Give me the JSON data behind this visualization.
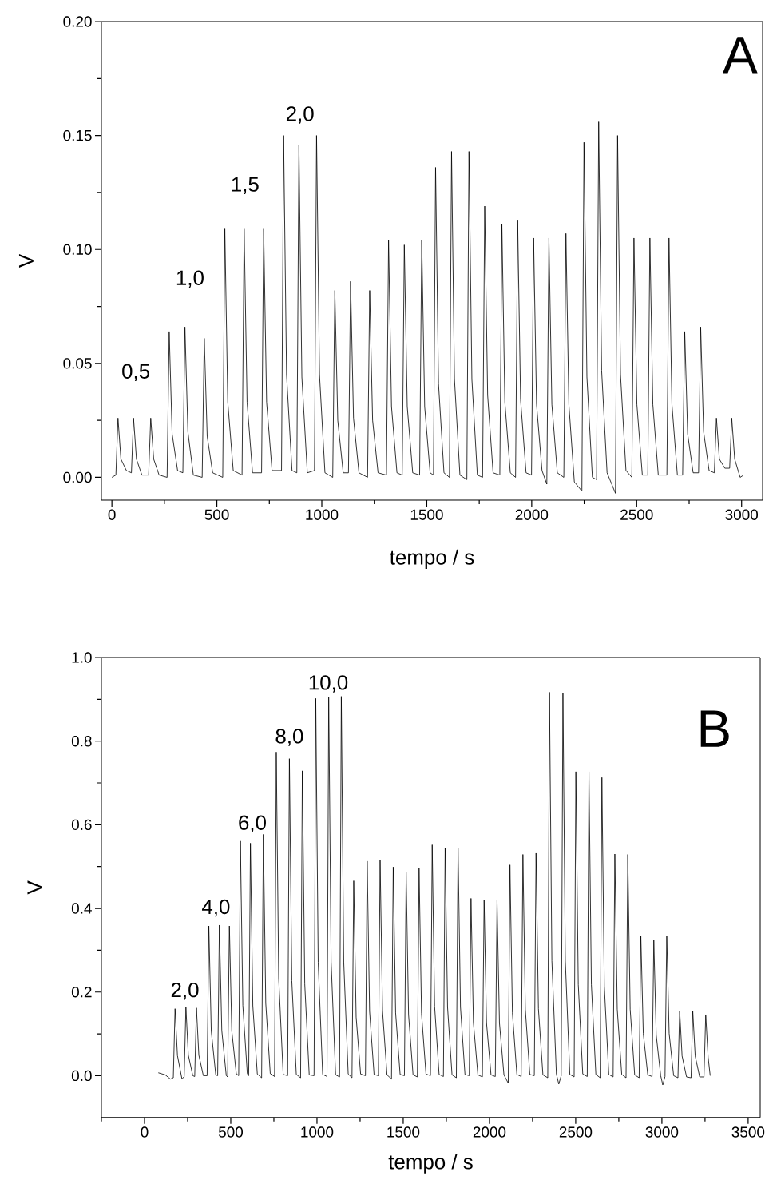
{
  "chart_data": [
    {
      "type": "line",
      "title": "A",
      "xlabel": "tempo / s",
      "ylabel": "V",
      "color": "#000000",
      "marker": "none",
      "line_style": "solid",
      "grid": false,
      "xlim": [
        -50,
        3100
      ],
      "ylim": [
        -0.01,
        0.2
      ],
      "xticks": [
        0,
        {
          "value": 250,
          "label": null
        },
        500,
        {
          "value": 750,
          "label": null
        },
        1000,
        {
          "value": 1250,
          "label": null
        },
        1500,
        {
          "value": 1750,
          "label": null
        },
        2000,
        {
          "value": 2250,
          "label": null
        },
        2500,
        {
          "value": 2750,
          "label": null
        },
        3000
      ],
      "yticks": [
        {
          "value": 0,
          "label": "0.00"
        },
        {
          "value": 0.025,
          "label": null
        },
        0.05,
        {
          "value": 0.075,
          "label": null
        },
        {
          "value": 0.1,
          "label": "0.10"
        },
        {
          "value": 0.125,
          "label": null
        },
        0.15,
        {
          "value": 0.175,
          "label": null
        },
        {
          "value": 0.2,
          "label": "0.20"
        }
      ],
      "annotations": [
        "0,5",
        "1,0",
        "1,5",
        "2,0"
      ],
      "x": [
        0,
        19,
        29,
        43,
        69,
        93,
        103,
        117,
        143,
        175,
        185,
        199,
        225,
        263,
        273,
        287,
        313,
        338,
        348,
        362,
        388,
        430,
        440,
        454,
        480,
        528,
        538,
        552,
        578,
        620,
        630,
        644,
        670,
        713,
        723,
        737,
        763,
        808,
        818,
        832,
        858,
        881,
        891,
        905,
        931,
        965,
        975,
        989,
        1015,
        1052,
        1062,
        1076,
        1102,
        1127,
        1137,
        1151,
        1177,
        1218,
        1228,
        1242,
        1268,
        1308,
        1318,
        1332,
        1358,
        1383,
        1393,
        1407,
        1433,
        1466,
        1476,
        1490,
        1516,
        1532,
        1542,
        1556,
        1582,
        1608,
        1618,
        1632,
        1658,
        1691,
        1701,
        1715,
        1741,
        1766,
        1776,
        1790,
        1816,
        1848,
        1858,
        1872,
        1898,
        1923,
        1933,
        1947,
        1973,
        1999,
        2009,
        2023,
        2049,
        2072,
        2082,
        2096,
        2122,
        2153,
        2163,
        2177,
        2203,
        2239,
        2249,
        2263,
        2289,
        2309,
        2319,
        2333,
        2359,
        2399,
        2409,
        2423,
        2449,
        2477,
        2487,
        2501,
        2527,
        2553,
        2563,
        2577,
        2603,
        2644,
        2654,
        2668,
        2694,
        2719,
        2729,
        2743,
        2769,
        2795,
        2805,
        2819,
        2845,
        2870,
        2880,
        2894,
        2920,
        2943,
        2953,
        2967,
        2993,
        3010
      ],
      "values": [
        0.0,
        0.001,
        0.026,
        0.008,
        0.003,
        0.002,
        0.026,
        0.008,
        0.001,
        0.001,
        0.026,
        0.008,
        0.001,
        0.0,
        0.064,
        0.019,
        0.003,
        0.002,
        0.066,
        0.02,
        0.001,
        0.0,
        0.061,
        0.018,
        0.002,
        0.0,
        0.109,
        0.033,
        0.003,
        0.001,
        0.109,
        0.033,
        0.002,
        0.002,
        0.109,
        0.033,
        0.003,
        0.003,
        0.15,
        0.045,
        0.003,
        0.002,
        0.146,
        0.044,
        0.002,
        0.003,
        0.15,
        0.045,
        0.002,
        0.0,
        0.082,
        0.025,
        0.002,
        0.002,
        0.086,
        0.026,
        0.002,
        0.0,
        0.082,
        0.025,
        0.002,
        0.001,
        0.104,
        0.031,
        0.002,
        0.001,
        0.102,
        0.031,
        0.002,
        0.001,
        0.104,
        0.031,
        0.002,
        0.001,
        0.136,
        0.041,
        0.002,
        0.0,
        0.143,
        0.043,
        0.001,
        -0.001,
        0.143,
        0.043,
        0.001,
        0.0,
        0.119,
        0.036,
        0.002,
        0.001,
        0.111,
        0.033,
        0.002,
        0.0,
        0.113,
        0.034,
        0.002,
        0.001,
        0.105,
        0.032,
        0.003,
        -0.003,
        0.105,
        0.032,
        0.002,
        0.0,
        0.107,
        0.032,
        -0.002,
        -0.006,
        0.147,
        0.044,
        0.0,
        -0.001,
        0.156,
        0.047,
        0.002,
        -0.007,
        0.15,
        0.045,
        0.003,
        0.0,
        0.105,
        0.032,
        0.001,
        0.001,
        0.105,
        0.032,
        0.001,
        0.001,
        0.105,
        0.032,
        0.001,
        0.001,
        0.064,
        0.019,
        0.002,
        0.002,
        0.066,
        0.02,
        0.003,
        0.002,
        0.026,
        0.008,
        0.004,
        0.004,
        0.026,
        0.008,
        0.0,
        0.001
      ]
    },
    {
      "type": "line",
      "title": "B",
      "xlabel": "tempo / s",
      "ylabel": "V",
      "color": "#000000",
      "marker": "none",
      "line_style": "solid",
      "grid": false,
      "xlim": [
        -250,
        3570
      ],
      "ylim": [
        -0.1,
        1.0
      ],
      "xticks": [
        {
          "value": -250,
          "label": null
        },
        0,
        {
          "value": 250,
          "label": null
        },
        500,
        {
          "value": 750,
          "label": null
        },
        1000,
        {
          "value": 1250,
          "label": null
        },
        1500,
        {
          "value": 1750,
          "label": null
        },
        2000,
        {
          "value": 2250,
          "label": null
        },
        2500,
        {
          "value": 2750,
          "label": null
        },
        3000,
        {
          "value": 3250,
          "label": null
        },
        3500
      ],
      "yticks": [
        {
          "value": 0,
          "label": "0.0"
        },
        {
          "value": 0.1,
          "label": null
        },
        0.2,
        {
          "value": 0.3,
          "label": null
        },
        0.4,
        {
          "value": 0.5,
          "label": null
        },
        0.6,
        {
          "value": 0.7,
          "label": null
        },
        0.8,
        {
          "value": 0.9,
          "label": null
        },
        {
          "value": 1.0,
          "label": "1.0"
        }
      ],
      "annotations": [
        "2,0",
        "4,0",
        "6,0",
        "8,0",
        "10,0"
      ],
      "x": [
        80,
        120,
        150,
        167,
        177,
        191,
        217,
        230,
        240,
        254,
        280,
        291,
        301,
        315,
        341,
        363,
        373,
        387,
        413,
        424,
        434,
        448,
        474,
        482,
        492,
        506,
        532,
        546,
        556,
        570,
        596,
        604,
        614,
        628,
        654,
        679,
        689,
        703,
        729,
        754,
        764,
        778,
        804,
        830,
        840,
        854,
        880,
        905,
        915,
        929,
        955,
        983,
        993,
        1007,
        1033,
        1058,
        1068,
        1082,
        1108,
        1131,
        1141,
        1155,
        1181,
        1203,
        1213,
        1227,
        1253,
        1281,
        1291,
        1305,
        1331,
        1356,
        1366,
        1380,
        1406,
        1432,
        1442,
        1456,
        1482,
        1507,
        1517,
        1531,
        1557,
        1582,
        1592,
        1606,
        1632,
        1658,
        1668,
        1682,
        1708,
        1733,
        1743,
        1757,
        1783,
        1808,
        1818,
        1832,
        1858,
        1883,
        1893,
        1907,
        1933,
        1959,
        1969,
        1983,
        2009,
        2034,
        2044,
        2058,
        2084,
        2109,
        2119,
        2133,
        2159,
        2184,
        2194,
        2208,
        2234,
        2260,
        2270,
        2284,
        2310,
        2338,
        2348,
        2362,
        2388,
        2402,
        2416,
        2426,
        2440,
        2466,
        2491,
        2501,
        2515,
        2541,
        2567,
        2577,
        2591,
        2617,
        2642,
        2652,
        2666,
        2692,
        2717,
        2727,
        2741,
        2767,
        2792,
        2802,
        2816,
        2842,
        2868,
        2878,
        2892,
        2918,
        2943,
        2953,
        2967,
        2993,
        3005,
        3018,
        3028,
        3042,
        3068,
        3093,
        3103,
        3117,
        3143,
        3169,
        3179,
        3193,
        3219,
        3244,
        3254,
        3268,
        3280
      ],
      "values": [
        0.007,
        0.002,
        -0.008,
        -0.005,
        0.16,
        0.048,
        -0.008,
        -0.002,
        0.164,
        0.049,
        0.0,
        -0.002,
        0.162,
        0.049,
        0.0,
        0.0,
        0.358,
        0.107,
        0.002,
        0.0,
        0.36,
        0.108,
        0.0,
        -0.003,
        0.358,
        0.107,
        0.005,
        0.0,
        0.561,
        0.168,
        0.005,
        0.0,
        0.556,
        0.167,
        0.004,
        -0.005,
        0.577,
        0.173,
        0.005,
        -0.002,
        0.774,
        0.232,
        0.003,
        0.0,
        0.758,
        0.227,
        0.003,
        -0.005,
        0.729,
        0.219,
        0.002,
        0.0,
        0.902,
        0.271,
        0.003,
        -0.002,
        0.905,
        0.272,
        0.002,
        -0.003,
        0.907,
        0.272,
        0.004,
        -0.005,
        0.466,
        0.14,
        0.004,
        0.0,
        0.513,
        0.154,
        0.003,
        0.0,
        0.516,
        0.155,
        0.002,
        -0.008,
        0.499,
        0.15,
        0.003,
        0.0,
        0.486,
        0.146,
        0.002,
        -0.003,
        0.496,
        0.149,
        0.004,
        0.0,
        0.552,
        0.166,
        0.003,
        -0.002,
        0.545,
        0.164,
        0.002,
        -0.005,
        0.545,
        0.164,
        0.003,
        0.0,
        0.424,
        0.127,
        0.002,
        -0.003,
        0.421,
        0.126,
        0.002,
        -0.002,
        0.419,
        0.126,
        0.002,
        -0.018,
        0.504,
        0.151,
        0.003,
        -0.002,
        0.529,
        0.159,
        0.003,
        0.0,
        0.532,
        0.16,
        0.002,
        -0.005,
        0.917,
        0.275,
        0.004,
        -0.02,
        0.0,
        0.914,
        0.274,
        0.003,
        -0.003,
        0.727,
        0.218,
        0.004,
        -0.002,
        0.727,
        0.218,
        0.003,
        -0.005,
        0.713,
        0.214,
        0.003,
        -0.003,
        0.53,
        0.159,
        0.003,
        -0.005,
        0.529,
        0.159,
        0.002,
        -0.005,
        0.335,
        0.101,
        0.002,
        -0.002,
        0.324,
        0.097,
        0.0,
        -0.022,
        -0.002,
        0.335,
        0.101,
        0.0,
        -0.005,
        0.155,
        0.047,
        -0.003,
        -0.005,
        0.155,
        0.047,
        -0.003,
        -0.003,
        0.146,
        0.044,
        0.0
      ]
    }
  ]
}
